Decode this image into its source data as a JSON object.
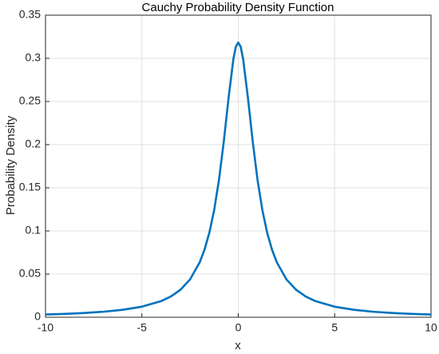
{
  "chart_data": {
    "type": "line",
    "title": "Cauchy Probability Density Function",
    "xlabel": "x",
    "ylabel": "Probability Density",
    "x": [
      -10,
      -9,
      -8,
      -7,
      -6,
      -5,
      -4,
      -3.5,
      -3,
      -2.5,
      -2,
      -1.75,
      -1.5,
      -1.25,
      -1,
      -0.75,
      -0.5,
      -0.25,
      -0.125,
      0,
      0.125,
      0.25,
      0.5,
      0.75,
      1,
      1.25,
      1.5,
      1.75,
      2,
      2.5,
      3,
      3.5,
      4,
      5,
      6,
      7,
      8,
      9,
      10
    ],
    "series": [
      {
        "color": "#0072bd",
        "values": [
          0.00315,
          0.00388,
          0.0049,
          0.00637,
          0.0086,
          0.01224,
          0.01872,
          0.02402,
          0.03183,
          0.0439,
          0.06366,
          0.07835,
          0.09794,
          0.12422,
          0.15915,
          0.20372,
          0.25465,
          0.29959,
          0.31341,
          0.31831,
          0.31341,
          0.29959,
          0.25465,
          0.20372,
          0.15915,
          0.12422,
          0.09794,
          0.07835,
          0.06366,
          0.0439,
          0.03183,
          0.02402,
          0.01872,
          0.01224,
          0.0086,
          0.00637,
          0.0049,
          0.00388,
          0.00315
        ]
      }
    ],
    "xlim": [
      -10,
      10
    ],
    "xticks": [
      -10,
      -5,
      0,
      5,
      10
    ],
    "ylim": [
      0,
      0.35
    ],
    "yticks": [
      0,
      0.05,
      0.1,
      0.15,
      0.2,
      0.25,
      0.3,
      0.35
    ],
    "grid": true
  }
}
